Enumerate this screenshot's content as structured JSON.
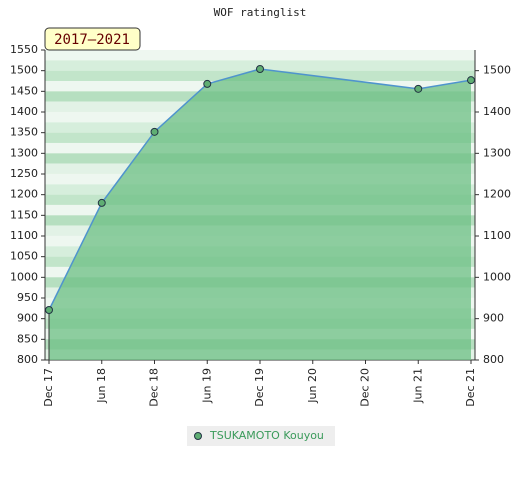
{
  "chart_data": {
    "type": "line",
    "title": "WOF ratinglist",
    "badge": "2017–2021",
    "xticks": [
      "Dec 17",
      "Jun 18",
      "Dec 18",
      "Jun 19",
      "Dec 19",
      "Jun 20",
      "Dec 20",
      "Jun 21",
      "Dec 21"
    ],
    "x": [
      "Dec 17",
      "Jun 18",
      "Dec 18",
      "Jun 19",
      "Dec 19",
      "Jun 21",
      "Dec 21"
    ],
    "series": [
      {
        "name": "TSUKAMOTO Kouyou",
        "color": "#5fae73",
        "line_color": "#4f94cd",
        "fill_color": "#6cbf84",
        "values": [
          921,
          1180,
          1352,
          1468,
          1504,
          1456,
          1477
        ]
      }
    ],
    "ylim": [
      800,
      1550
    ],
    "yticks": [
      800,
      850,
      900,
      950,
      1000,
      1050,
      1100,
      1150,
      1200,
      1250,
      1300,
      1350,
      1400,
      1450,
      1500,
      1550
    ],
    "y2lim": [
      800,
      1550
    ],
    "y2ticks": [
      800,
      900,
      1000,
      1100,
      1200,
      1300,
      1400,
      1500
    ],
    "legend": "bottom"
  }
}
